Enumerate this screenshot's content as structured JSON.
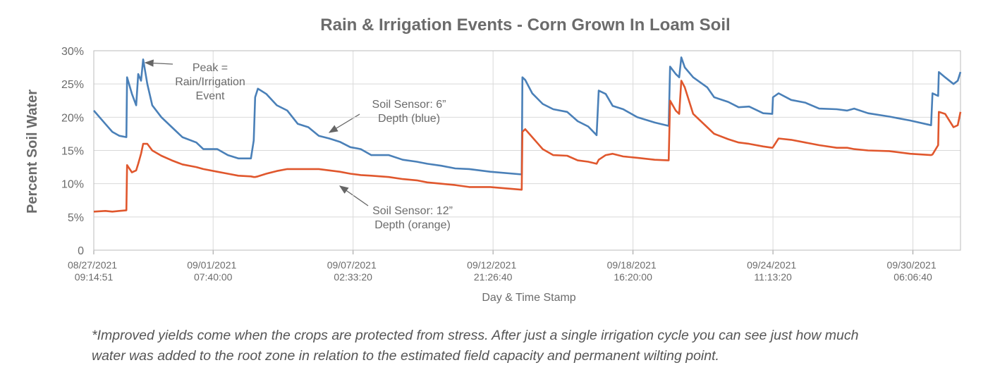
{
  "chart_data": {
    "type": "line",
    "title": "Rain & Irrigation Events - Corn Grown In Loam Soil",
    "xlabel": "Day & Time Stamp",
    "ylabel": "Percent Soil Water",
    "grid": true,
    "xlim": [
      "2021-08-27T09:14:51",
      "2021-10-02T05:19:00"
    ],
    "xticks": [
      {
        "value": "2021-08-27T09:14:51",
        "label": "08/27/2021 09:14:51"
      },
      {
        "value": "2021-09-01T07:40:00",
        "label": "09/01/2021 07:40:00"
      },
      {
        "value": "2021-09-07T02:33:20",
        "label": "09/07/2021 02:33:20"
      },
      {
        "value": "2021-09-12T21:26:40",
        "label": "09/12/2021 21:26:40"
      },
      {
        "value": "2021-09-18T16:20:00",
        "label": "09/18/2021 16:20:00"
      },
      {
        "value": "2021-09-24T11:13:20",
        "label": "09/24/2021 11:13:20"
      },
      {
        "value": "2021-09-30T06:06:40",
        "label": "09/30/2021 06:06:40"
      }
    ],
    "ylim": [
      0,
      30
    ],
    "yticks": [
      0,
      {
        "value": 5,
        "label": "5%"
      },
      {
        "value": 10,
        "label": "10%"
      },
      {
        "value": 15,
        "label": "15%"
      },
      {
        "value": 20,
        "label": "20%"
      },
      {
        "value": 25,
        "label": "25%"
      },
      {
        "value": 30,
        "label": "30%"
      }
    ],
    "x": [
      "2021-08-27T09:14:51",
      "2021-08-27T20:44",
      "2021-08-28T03:40",
      "2021-08-28T10:37",
      "2021-08-28T17:34",
      "2021-08-28T18:16",
      "2021-08-28T23:07",
      "2021-08-29T03:17",
      "2021-08-29T05:22",
      "2021-08-29T08:08",
      "2021-08-29T10:13",
      "2021-08-29T14:23",
      "2021-08-29T19:15",
      "2021-08-30T04:17",
      "2021-08-30T14:42",
      "2021-08-31T01:07",
      "2021-08-31T15:00",
      "2021-08-31T21:57",
      "2021-09-01T11:50",
      "2021-09-01T22:15",
      "2021-09-02T08:40",
      "2021-09-02T21:10",
      "2021-09-02T23:57",
      "2021-09-03T01:20",
      "2021-09-03T04:07",
      "2021-09-03T12:27",
      "2021-09-03T22:52",
      "2021-09-04T09:17",
      "2021-09-04T19:42",
      "2021-09-05T06:07",
      "2021-09-05T16:32",
      "2021-09-06T02:56",
      "2021-09-06T13:21",
      "2021-09-06T23:46",
      "2021-09-07T10:11",
      "2021-09-07T20:36",
      "2021-09-08T13:58",
      "2021-09-09T03:51",
      "2021-09-09T17:45",
      "2021-09-10T04:10",
      "2021-09-10T18:04",
      "2021-09-11T07:56",
      "2021-09-11T21:50",
      "2021-09-12T18:40",
      "2021-09-14T01:55",
      "2021-09-14T02:37",
      "2021-09-14T05:23",
      "2021-09-14T12:20",
      "2021-09-14T22:44",
      "2021-09-15T09:10",
      "2021-09-15T23:03",
      "2021-09-16T09:28",
      "2021-09-16T19:53",
      "2021-09-17T04:13",
      "2021-09-17T06:18",
      "2021-09-17T13:14",
      "2021-09-17T20:12",
      "2021-09-18T06:37",
      "2021-09-18T20:31",
      "2021-09-19T13:52",
      "2021-09-20T03:46",
      "2021-09-20T05:08",
      "2021-09-20T10:42",
      "2021-09-20T14:10",
      "2021-09-20T16:14",
      "2021-09-20T19:43",
      "2021-09-21T04:03",
      "2021-09-21T17:57",
      "2021-09-22T00:53",
      "2021-09-22T14:46",
      "2021-09-23T01:11",
      "2021-09-23T11:36",
      "2021-09-24T01:30",
      "2021-09-24T10:32",
      "2021-09-24T11:13",
      "2021-09-24T16:46",
      "2021-09-25T05:16",
      "2021-09-25T19:10",
      "2021-09-26T09:04",
      "2021-09-27T02:25",
      "2021-09-27T12:50",
      "2021-09-27T19:46",
      "2021-09-28T09:40",
      "2021-09-29T06:29",
      "2021-09-30T03:20",
      "2021-10-01T00:10",
      "2021-10-01T01:33",
      "2021-10-01T07:07",
      "2021-10-01T07:49",
      "2021-10-01T14:03",
      "2021-10-01T22:23",
      "2021-10-02T02:34",
      "2021-10-02T05:19"
    ],
    "series": [
      {
        "color": "#4a80b8",
        "values": [
          21.0,
          19.0,
          17.8,
          17.2,
          17.0,
          26.0,
          23.5,
          21.8,
          26.5,
          25.5,
          28.7,
          25.0,
          21.8,
          20.0,
          18.5,
          17.0,
          16.2,
          15.2,
          15.2,
          14.3,
          13.8,
          13.8,
          16.5,
          23.0,
          24.3,
          23.5,
          21.8,
          21.0,
          19.0,
          18.5,
          17.2,
          16.8,
          16.3,
          15.5,
          15.2,
          14.3,
          14.3,
          13.6,
          13.3,
          13.0,
          12.7,
          12.3,
          12.2,
          11.8,
          11.4,
          26.0,
          25.6,
          23.6,
          22.0,
          21.2,
          20.8,
          19.4,
          18.6,
          17.3,
          24.0,
          23.5,
          21.7,
          21.2,
          20.0,
          19.2,
          18.7,
          27.6,
          26.5,
          26.0,
          29.0,
          27.5,
          26.0,
          24.5,
          23.0,
          22.3,
          21.5,
          21.6,
          20.6,
          20.5,
          23.0,
          23.6,
          22.6,
          22.2,
          21.3,
          21.2,
          21.0,
          21.3,
          20.6,
          20.1,
          19.5,
          18.8,
          23.6,
          23.2,
          26.8,
          26.0,
          25.0,
          25.5,
          26.8
        ]
      },
      {
        "color": "#e0572d",
        "values": [
          5.8,
          5.9,
          5.8,
          5.9,
          6.0,
          12.8,
          11.7,
          12.0,
          13.0,
          14.5,
          16.0,
          16.0,
          15.0,
          14.2,
          13.5,
          12.9,
          12.5,
          12.2,
          11.8,
          11.5,
          11.2,
          11.1,
          11.0,
          11.0,
          11.1,
          11.5,
          11.9,
          12.2,
          12.2,
          12.2,
          12.2,
          12.0,
          11.8,
          11.5,
          11.3,
          11.2,
          11.0,
          10.7,
          10.5,
          10.2,
          10.0,
          9.8,
          9.5,
          9.5,
          9.1,
          17.8,
          18.2,
          17.0,
          15.2,
          14.3,
          14.2,
          13.5,
          13.3,
          13.0,
          13.6,
          14.3,
          14.5,
          14.1,
          13.9,
          13.6,
          13.5,
          22.5,
          21.0,
          20.5,
          25.5,
          24.5,
          20.5,
          18.5,
          17.5,
          16.7,
          16.2,
          16.0,
          15.6,
          15.4,
          15.5,
          16.8,
          16.6,
          16.2,
          15.8,
          15.4,
          15.4,
          15.2,
          15.0,
          14.9,
          14.5,
          14.3,
          14.4,
          15.8,
          20.8,
          20.5,
          18.5,
          18.8,
          20.8
        ]
      }
    ],
    "annotations": [
      {
        "lines": [
          "Peak =",
          "Rain/Irrigation",
          "Event"
        ]
      },
      {
        "lines": [
          "Soil Sensor: 6”",
          "Depth (blue)"
        ]
      },
      {
        "lines": [
          "Soil Sensor: 12”",
          "Depth (orange)"
        ]
      }
    ]
  },
  "footnote": "*Improved yields come when the crops are protected from stress. After just a single irrigation cycle you can see just how much water was added to the root zone in relation to the estimated field capacity and permanent wilting point."
}
